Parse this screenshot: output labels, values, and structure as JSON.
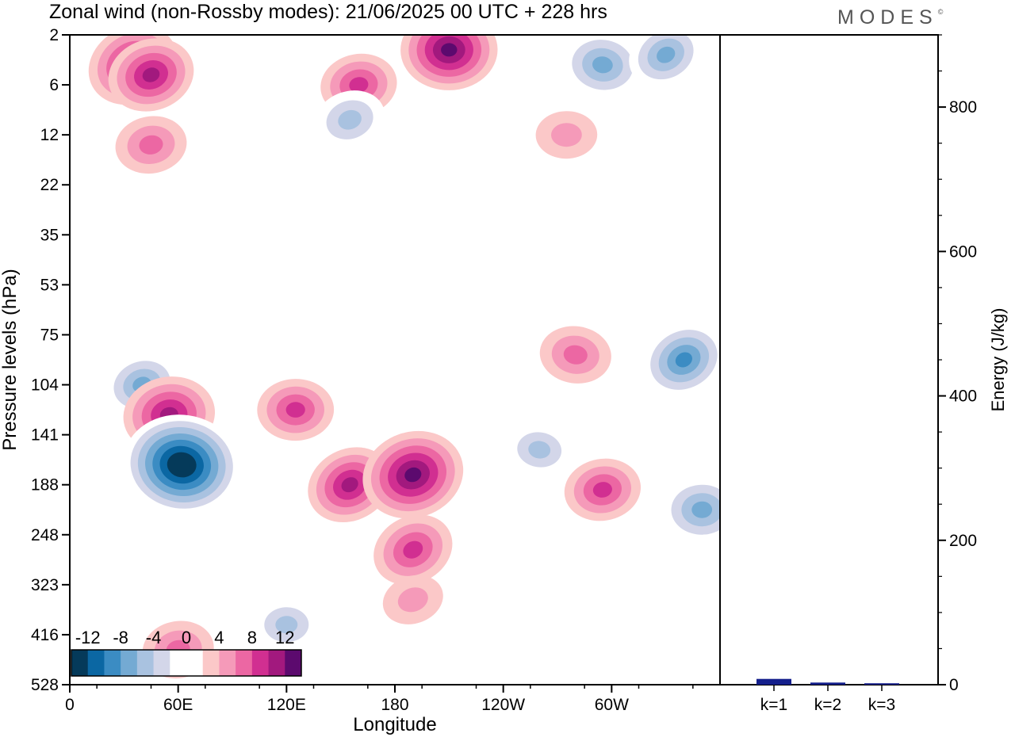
{
  "title": "Zonal wind (non-Rossby modes):  21/06/2025  00 UTC  + 228 hrs",
  "logo": "MODES",
  "logo_mark": "©",
  "chart_data": [
    {
      "type": "heatmap",
      "title": "Zonal wind (non-Rossby modes):  21/06/2025  00 UTC  + 228 hrs",
      "xlabel": "Longitude",
      "ylabel": "Pressure levels (hPa)",
      "x_tick_labels": [
        "0",
        "60E",
        "120E",
        "180",
        "120W",
        "60W"
      ],
      "y_tick_labels": [
        "2",
        "6",
        "12",
        "22",
        "35",
        "53",
        "75",
        "104",
        "141",
        "188",
        "248",
        "323",
        "416",
        "528"
      ],
      "colorbar": {
        "labels": [
          "-12",
          "-8",
          "-4",
          "0",
          "4",
          "8",
          "12"
        ],
        "colors": [
          "#053a5a",
          "#0b67a3",
          "#3b8cc3",
          "#74aad3",
          "#a9c2e0",
          "#d3d6e9",
          "#ffffff",
          "#ffffff",
          "#fbc8c8",
          "#f59ab9",
          "#ec67a3",
          "#d12f91",
          "#a2197e",
          "#5c0a6e"
        ]
      },
      "features": [
        {
          "lon": 35,
          "level_index": 0.6,
          "value": 10
        },
        {
          "lon": 45,
          "level_index": 0.8,
          "value": 9
        },
        {
          "lon": 160,
          "level_index": 1.0,
          "value": 7
        },
        {
          "lon": 210,
          "level_index": 0.3,
          "value": 11
        },
        {
          "lon": 295,
          "level_index": 0.6,
          "value": -8
        },
        {
          "lon": 330,
          "level_index": 0.4,
          "value": -7
        },
        {
          "lon": 155,
          "level_index": 1.7,
          "value": -6
        },
        {
          "lon": 45,
          "level_index": 2.2,
          "value": 6
        },
        {
          "lon": 275,
          "level_index": 2.0,
          "value": 4
        },
        {
          "lon": 280,
          "level_index": 6.4,
          "value": 6
        },
        {
          "lon": 340,
          "level_index": 6.5,
          "value": -9
        },
        {
          "lon": 40,
          "level_index": 7.0,
          "value": -7
        },
        {
          "lon": 55,
          "level_index": 7.6,
          "value": 10
        },
        {
          "lon": 125,
          "level_index": 7.5,
          "value": 7
        },
        {
          "lon": 62,
          "level_index": 8.6,
          "value": -15
        },
        {
          "lon": 155,
          "level_index": 9.0,
          "value": 9
        },
        {
          "lon": 190,
          "level_index": 8.8,
          "value": 12
        },
        {
          "lon": 295,
          "level_index": 9.1,
          "value": 7
        },
        {
          "lon": 350,
          "level_index": 9.5,
          "value": -8
        },
        {
          "lon": 260,
          "level_index": 8.3,
          "value": -5
        },
        {
          "lon": 190,
          "level_index": 10.3,
          "value": 8
        },
        {
          "lon": 190,
          "level_index": 11.3,
          "value": 4
        },
        {
          "lon": 60,
          "level_index": 12.3,
          "value": 6
        },
        {
          "lon": 120,
          "level_index": 11.8,
          "value": -5
        }
      ]
    },
    {
      "type": "bar",
      "categories": [
        "k=1",
        "k=2",
        "k=3"
      ],
      "values": [
        8,
        3,
        2
      ],
      "ylabel": "Energy (J/kg)",
      "ylim": [
        0,
        900
      ],
      "y_tick_labels": [
        "0",
        "200",
        "400",
        "600",
        "800"
      ],
      "bar_color": "#141f8c"
    }
  ]
}
